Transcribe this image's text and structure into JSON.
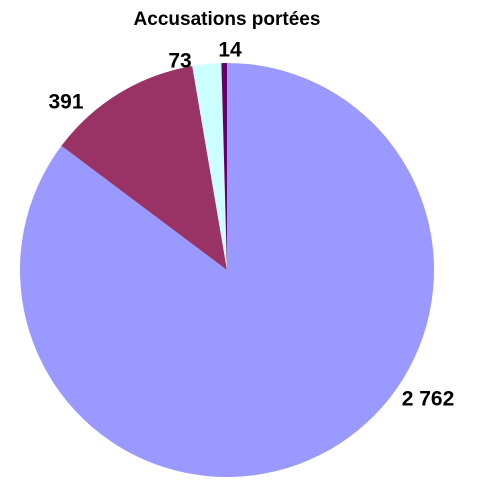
{
  "chart_data": {
    "type": "pie",
    "title": "Accusations portées",
    "values": [
      2762,
      391,
      73,
      14
    ],
    "value_labels": [
      "2 762",
      "391",
      "73",
      "14"
    ],
    "colors": [
      "#9999ff",
      "#993366",
      "#ccffff",
      "#660066"
    ]
  }
}
